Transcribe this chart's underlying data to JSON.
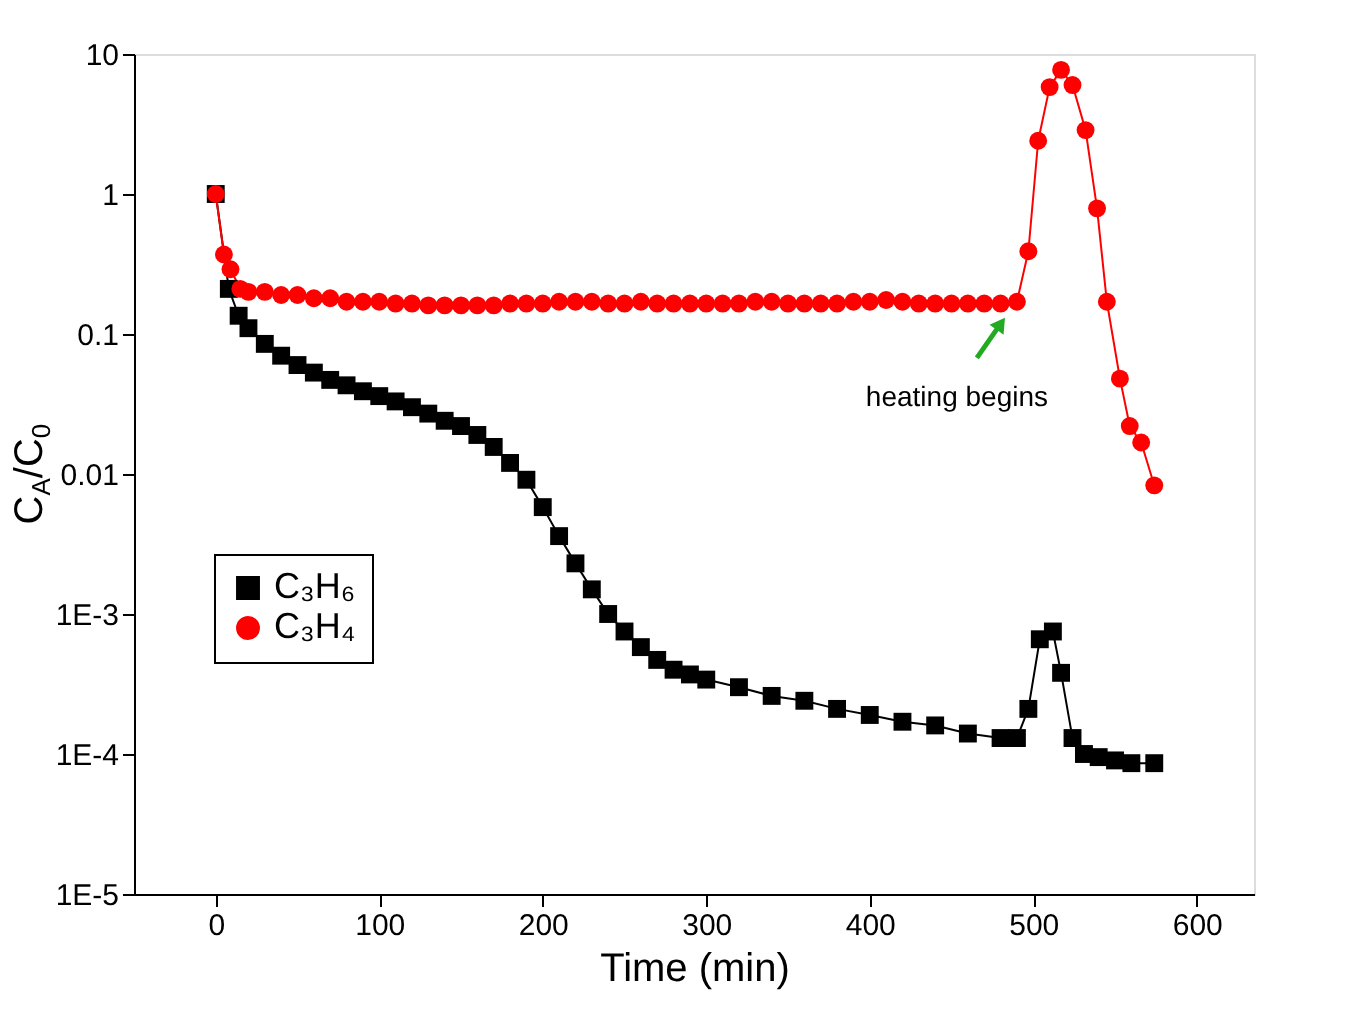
{
  "chart_data": {
    "type": "line",
    "xlabel": "Time (min)",
    "ylabel": "C$_{A}$/C$_{0}$",
    "log": "y",
    "xlim": [
      -50,
      635
    ],
    "xticks": [
      0,
      100,
      200,
      300,
      400,
      500,
      600
    ],
    "ylim": [
      1e-05,
      10
    ],
    "yticks": [
      {
        "value": 1e-05,
        "label": "1E-5"
      },
      {
        "value": 0.0001,
        "label": "1E-4"
      },
      {
        "value": 0.001,
        "label": "1E-3"
      },
      0.01,
      0.1,
      1,
      10
    ],
    "grid": false,
    "legend": "left",
    "line_style": "solid",
    "annotations": [
      {
        "text": "heating begins",
        "x": 490,
        "y": 0.17
      }
    ],
    "series": [
      {
        "name": "C₃H₆",
        "color": "#000000",
        "marker": "square",
        "x": [
          0,
          8,
          14,
          20,
          30,
          40,
          50,
          60,
          70,
          80,
          90,
          100,
          110,
          120,
          130,
          140,
          150,
          160,
          170,
          180,
          190,
          200,
          210,
          220,
          230,
          240,
          250,
          260,
          270,
          280,
          290,
          300,
          320,
          340,
          360,
          380,
          400,
          420,
          440,
          460,
          480,
          490,
          497,
          504,
          512,
          517,
          524,
          531,
          540,
          550,
          560,
          574
        ],
        "values": [
          1,
          0.21,
          0.135,
          0.11,
          0.085,
          0.07,
          0.06,
          0.053,
          0.047,
          0.043,
          0.039,
          0.036,
          0.033,
          0.03,
          0.027,
          0.024,
          0.022,
          0.019,
          0.0156,
          0.012,
          0.0091,
          0.0058,
          0.0036,
          0.0023,
          0.0015,
          0.001,
          0.00075,
          0.00058,
          0.00047,
          0.0004,
          0.00037,
          0.00034,
          0.0003,
          0.00026,
          0.00024,
          0.00021,
          0.00019,
          0.00017,
          0.00016,
          0.00014,
          0.00013,
          0.00013,
          0.00021,
          0.00066,
          0.00075,
          0.00038,
          0.00013,
          0.0001,
          9.5e-05,
          9e-05,
          8.6e-05,
          8.6e-05
        ]
      },
      {
        "name": "C₃H₄",
        "color": "#ff0000",
        "marker": "circle",
        "x": [
          0,
          5,
          9,
          15,
          20,
          30,
          40,
          50,
          60,
          70,
          80,
          90,
          100,
          110,
          120,
          130,
          140,
          150,
          160,
          170,
          180,
          190,
          200,
          210,
          220,
          230,
          240,
          250,
          260,
          270,
          280,
          290,
          300,
          310,
          320,
          330,
          340,
          350,
          360,
          370,
          380,
          390,
          400,
          410,
          420,
          430,
          440,
          450,
          460,
          470,
          480,
          490,
          497,
          503,
          510,
          517,
          524,
          532,
          539,
          545,
          553,
          559,
          566,
          574
        ],
        "values": [
          1,
          0.37,
          0.29,
          0.21,
          0.2,
          0.2,
          0.19,
          0.19,
          0.18,
          0.18,
          0.17,
          0.17,
          0.17,
          0.165,
          0.165,
          0.16,
          0.16,
          0.16,
          0.16,
          0.16,
          0.165,
          0.165,
          0.165,
          0.17,
          0.17,
          0.17,
          0.165,
          0.165,
          0.17,
          0.165,
          0.165,
          0.165,
          0.165,
          0.165,
          0.165,
          0.17,
          0.17,
          0.165,
          0.165,
          0.165,
          0.165,
          0.17,
          0.17,
          0.175,
          0.17,
          0.165,
          0.165,
          0.165,
          0.165,
          0.165,
          0.165,
          0.17,
          0.39,
          2.4,
          5.8,
          7.7,
          6.0,
          2.86,
          0.79,
          0.17,
          0.048,
          0.022,
          0.0168,
          0.0083
        ]
      }
    ]
  }
}
